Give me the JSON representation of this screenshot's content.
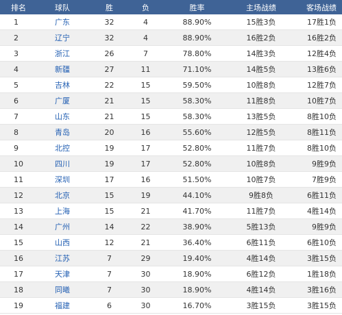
{
  "headers": {
    "rank": "排名",
    "team": "球队",
    "wins": "胜",
    "losses": "负",
    "pct": "胜率",
    "home": "主场战绩",
    "away": "客场战绩"
  },
  "rows": [
    {
      "rank": "1",
      "team": "广东",
      "wins": "32",
      "losses": "4",
      "pct": "88.90%",
      "home": "15胜3负",
      "away": "17胜1负"
    },
    {
      "rank": "2",
      "team": "辽宁",
      "wins": "32",
      "losses": "4",
      "pct": "88.90%",
      "home": "16胜2负",
      "away": "16胜2负"
    },
    {
      "rank": "3",
      "team": "浙江",
      "wins": "26",
      "losses": "7",
      "pct": "78.80%",
      "home": "14胜3负",
      "away": "12胜4负"
    },
    {
      "rank": "4",
      "team": "新疆",
      "wins": "27",
      "losses": "11",
      "pct": "71.10%",
      "home": "14胜5负",
      "away": "13胜6负"
    },
    {
      "rank": "5",
      "team": "吉林",
      "wins": "22",
      "losses": "15",
      "pct": "59.50%",
      "home": "10胜8负",
      "away": "12胜7负"
    },
    {
      "rank": "6",
      "team": "广厦",
      "wins": "21",
      "losses": "15",
      "pct": "58.30%",
      "home": "11胜8负",
      "away": "10胜7负"
    },
    {
      "rank": "7",
      "team": "山东",
      "wins": "21",
      "losses": "15",
      "pct": "58.30%",
      "home": "13胜5负",
      "away": "8胜10负"
    },
    {
      "rank": "8",
      "team": "青岛",
      "wins": "20",
      "losses": "16",
      "pct": "55.60%",
      "home": "12胜5负",
      "away": "8胜11负"
    },
    {
      "rank": "9",
      "team": "北控",
      "wins": "19",
      "losses": "17",
      "pct": "52.80%",
      "home": "11胜7负",
      "away": "8胜10负"
    },
    {
      "rank": "10",
      "team": "四川",
      "wins": "19",
      "losses": "17",
      "pct": "52.80%",
      "home": "10胜8负",
      "away": "9胜9负"
    },
    {
      "rank": "11",
      "team": "深圳",
      "wins": "17",
      "losses": "16",
      "pct": "51.50%",
      "home": "10胜7负",
      "away": "7胜9负"
    },
    {
      "rank": "12",
      "team": "北京",
      "wins": "15",
      "losses": "19",
      "pct": "44.10%",
      "home": "9胜8负",
      "away": "6胜11负"
    },
    {
      "rank": "13",
      "team": "上海",
      "wins": "15",
      "losses": "21",
      "pct": "41.70%",
      "home": "11胜7负",
      "away": "4胜14负"
    },
    {
      "rank": "14",
      "team": "广州",
      "wins": "14",
      "losses": "22",
      "pct": "38.90%",
      "home": "5胜13负",
      "away": "9胜9负"
    },
    {
      "rank": "15",
      "team": "山西",
      "wins": "12",
      "losses": "21",
      "pct": "36.40%",
      "home": "6胜11负",
      "away": "6胜10负"
    },
    {
      "rank": "16",
      "team": "江苏",
      "wins": "7",
      "losses": "29",
      "pct": "19.40%",
      "home": "4胜14负",
      "away": "3胜15负"
    },
    {
      "rank": "17",
      "team": "天津",
      "wins": "7",
      "losses": "30",
      "pct": "18.90%",
      "home": "6胜12负",
      "away": "1胜18负"
    },
    {
      "rank": "18",
      "team": "同曦",
      "wins": "7",
      "losses": "30",
      "pct": "18.90%",
      "home": "4胜14负",
      "away": "3胜16负"
    },
    {
      "rank": "19",
      "team": "福建",
      "wins": "6",
      "losses": "30",
      "pct": "16.70%",
      "home": "3胜15负",
      "away": "3胜15负"
    }
  ]
}
